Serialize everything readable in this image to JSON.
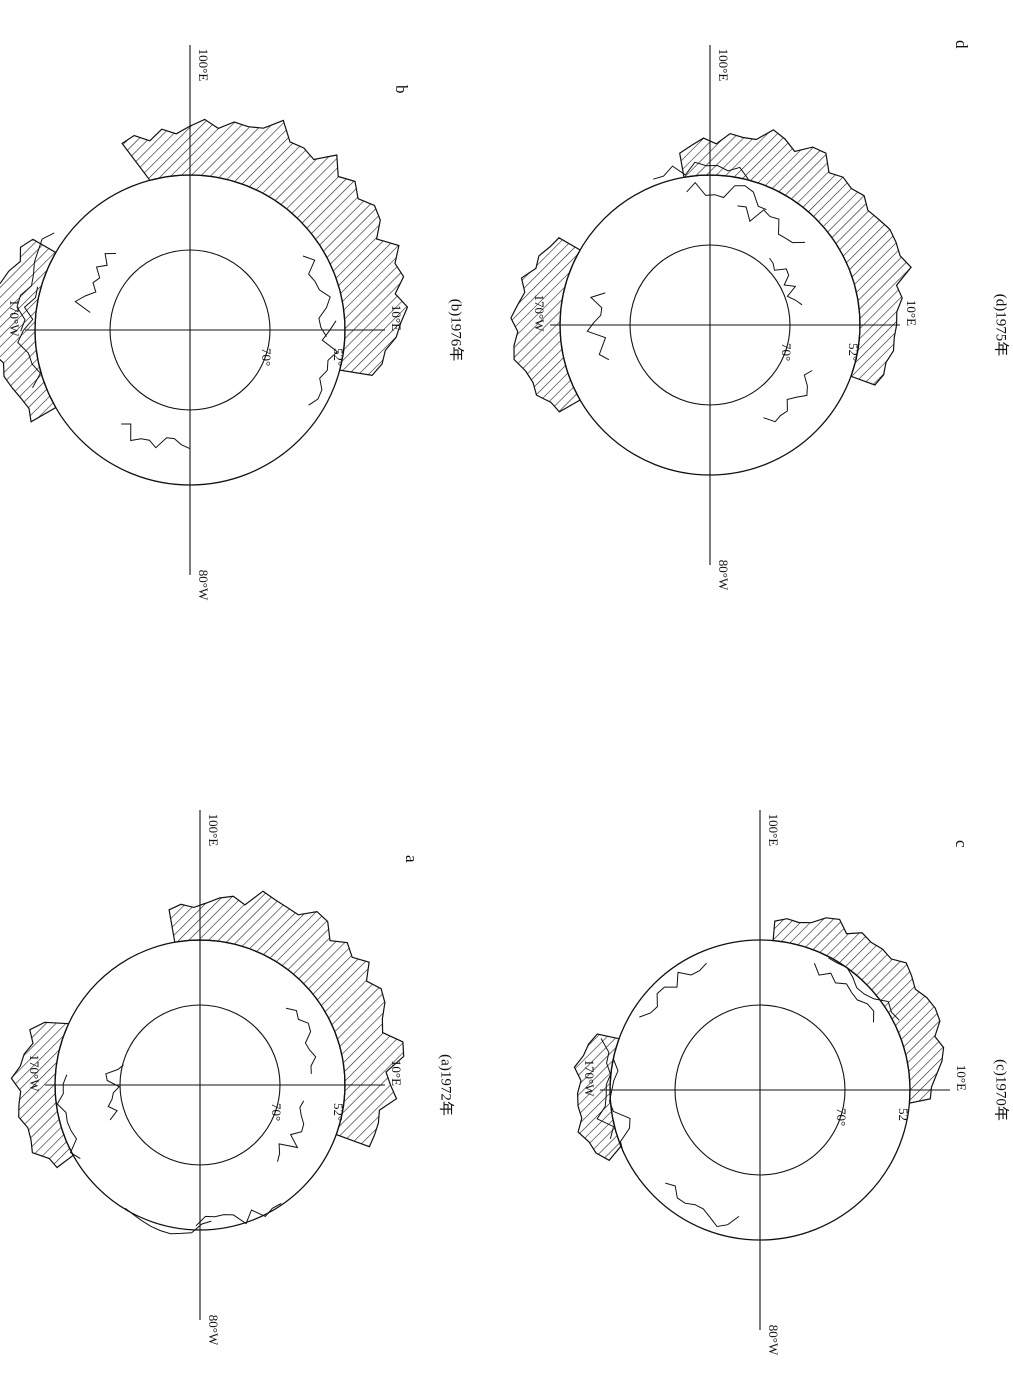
{
  "panels": [
    {
      "letter": "a",
      "caption": "(a)1972年",
      "axis_labels": {
        "left": "170°W",
        "top": "100°E",
        "right": "10°E",
        "bottom": "80°W"
      },
      "lat_labels": [
        "70°",
        "52°"
      ]
    },
    {
      "letter": "b",
      "caption": "(b)1976年",
      "axis_labels": {
        "left": "170°W",
        "top": "100°E",
        "right": "10°E",
        "bottom": "80°W"
      },
      "lat_labels": [
        "70°",
        "52°"
      ]
    },
    {
      "letter": "c",
      "caption": "(c)1970年",
      "axis_labels": {
        "left": "170°W",
        "top": "100°E",
        "right": "10°E",
        "bottom": "80°W"
      },
      "lat_labels": [
        "70°",
        "52"
      ]
    },
    {
      "letter": "d",
      "caption": "(d)1975年",
      "axis_labels": {
        "left": "170°W",
        "top": "100°E",
        "right": "10°E",
        "bottom": "80°W"
      },
      "lat_labels": [
        "70°",
        "52°"
      ]
    }
  ]
}
